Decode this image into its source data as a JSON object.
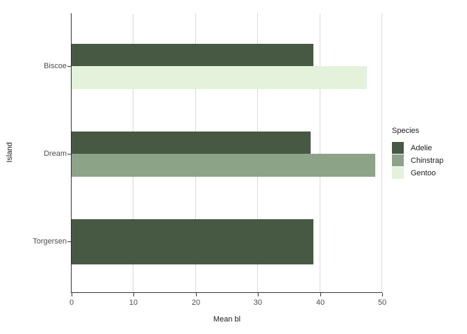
{
  "chart_data": {
    "type": "bar",
    "orientation": "horizontal",
    "title": "",
    "xlabel": "Mean bl",
    "ylabel": "Island",
    "legend_title": "Species",
    "legend_position": "right",
    "grid": "vertical-major-only",
    "xlim": [
      0,
      50
    ],
    "x_ticks": [
      0,
      10,
      20,
      30,
      40,
      50
    ],
    "categories": [
      "Biscoe",
      "Dream",
      "Torgersen"
    ],
    "series": [
      {
        "name": "Adelie",
        "color": "#475943",
        "values": [
          38.98,
          38.5,
          38.95
        ]
      },
      {
        "name": "Chinstrap",
        "color": "#8ca388",
        "values": [
          null,
          48.83,
          null
        ]
      },
      {
        "name": "Gentoo",
        "color": "#e4f1db",
        "values": [
          47.5,
          null,
          null
        ]
      }
    ]
  },
  "colors": {
    "background": "#ffffff",
    "axis_line": "#333333",
    "gridline": "#d9d9d9",
    "tick_text": "#4d4d4d",
    "title_text": "#1a1a1a"
  }
}
